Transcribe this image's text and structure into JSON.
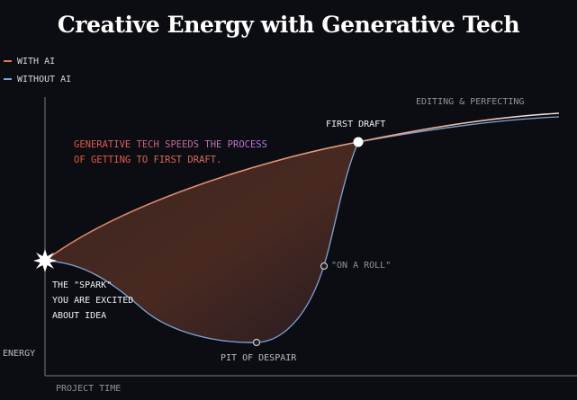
{
  "title": "Creative Energy with Generative Tech",
  "legend": {
    "with_ai": "WITH AI",
    "without_ai": "WITHOUT AI"
  },
  "colors": {
    "with_ai": "#e07a5f",
    "without_ai": "#7ea6d9",
    "note_start": "#e8573f",
    "note_end": "#b47be8",
    "background": "#0c0d12"
  },
  "axes": {
    "y_label": "ENERGY",
    "x_label": "PROJECT TIME"
  },
  "annotations": {
    "first_draft": "FIRST DRAFT",
    "editing": "EDITING & PERFECTING",
    "on_a_roll": "\"ON A ROLL\"",
    "pit": "PIT OF DESPAIR",
    "spark": [
      "THE \"SPARK\"",
      "YOU ARE EXCITED",
      "ABOUT IDEA"
    ],
    "note": [
      "GENERATIVE TECH SPEEDS THE PROCESS",
      "OF GETTING TO FIRST DRAFT."
    ]
  },
  "icons": {
    "spark": "spark-icon",
    "milestone": "milestone-dot-icon"
  }
}
